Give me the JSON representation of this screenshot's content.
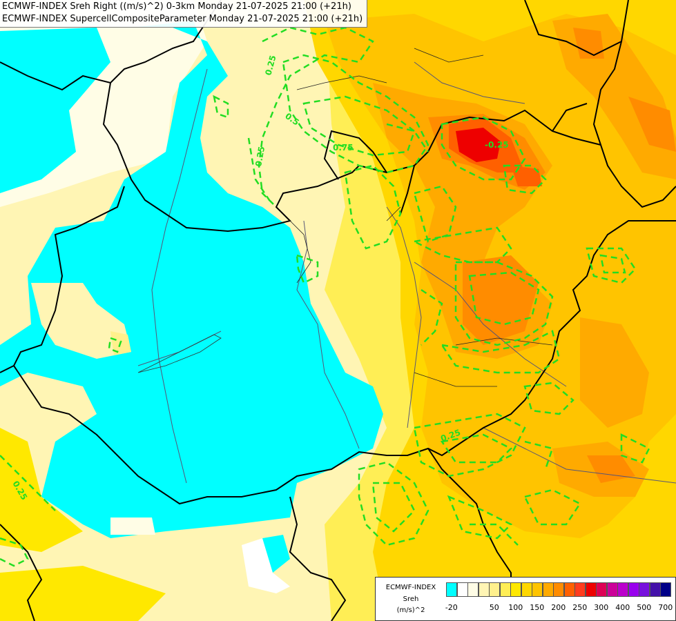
{
  "title_lines": [
    "ECMWF-INDEX Sreh Right ((m/s)^2) 0-3km Monday 21-07-2025 21:00 (+21h)",
    "ECMWF-INDEX SupercellCompositeParameter Monday 21-07-2025 21:00 (+21h)"
  ],
  "legend": {
    "line1": "ECMWF-INDEX",
    "line2": "Sreh",
    "line3": "(m/s)^2",
    "colors": [
      "#00ffff",
      "#ffffff",
      "#fffde6",
      "#fff5b4",
      "#fff08c",
      "#ffee55",
      "#ffe800",
      "#ffd700",
      "#ffc400",
      "#ffaa00",
      "#ff8c00",
      "#ff6000",
      "#ff3c1e",
      "#ee0000",
      "#dd0055",
      "#cc0099",
      "#bb00cc",
      "#9900ee",
      "#7711dd",
      "#4411aa",
      "#000088"
    ],
    "tick_labels": [
      "-20",
      "50",
      "100",
      "150",
      "200",
      "250",
      "300",
      "400",
      "500",
      "700"
    ]
  },
  "contour_labels": [
    "0.25",
    "0.5",
    "0.75",
    "0.25",
    "-0.25",
    "0.25",
    "0.25"
  ],
  "colors": {
    "cyan_zone": "#00ffff",
    "yellow_zone": "#ffee55",
    "orange_zone": "#ffaa00",
    "red_zone": "#ee0000",
    "contour": "#22dd22",
    "border": "#000000",
    "river": "#555577"
  }
}
